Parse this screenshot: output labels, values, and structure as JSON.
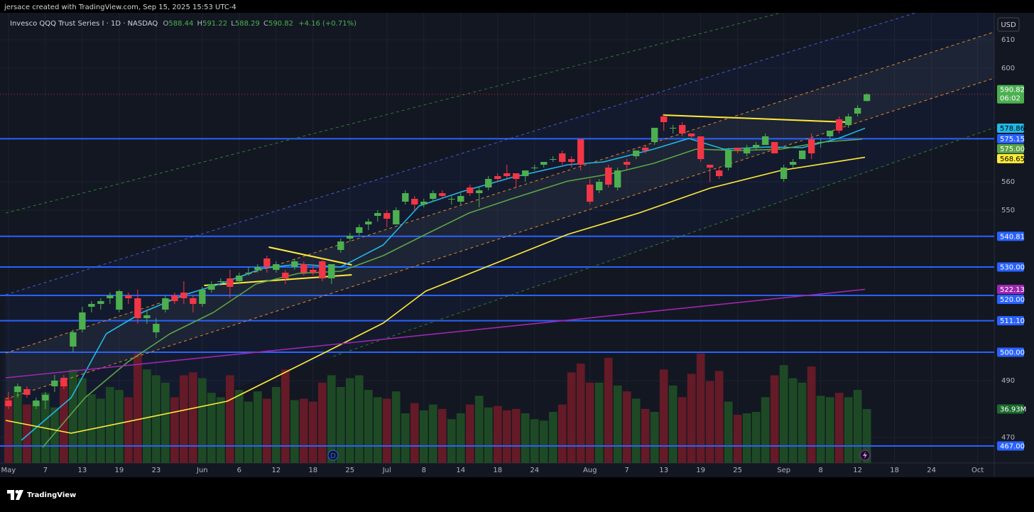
{
  "header": {
    "credit": "jersace created with TradingView.com, Sep 15, 2025 15:53 UTC-4"
  },
  "footer": {
    "brand": "TradingView"
  },
  "chart_data": {
    "type": "candlestick",
    "symbol": "Invesco QQQ Trust Series I · 1D · NASDAQ",
    "ohlc_labels": [
      "O",
      "H",
      "L",
      "C"
    ],
    "change": "+4.16 (+0.71%)",
    "currency": "USD",
    "countdown": "06:02",
    "dividend_marker": "D",
    "up_color": "#4caf50",
    "down_color": "#f23645",
    "volume_up_color": "#1d4a25",
    "volume_down_color": "#641b27",
    "candles": [
      [
        483,
        486,
        480,
        481
      ],
      [
        486,
        489,
        484,
        488
      ],
      [
        487,
        488,
        484,
        485
      ],
      [
        481,
        484,
        480,
        483
      ],
      [
        483,
        486,
        480,
        485
      ],
      [
        488,
        492,
        486,
        490
      ],
      [
        491,
        492,
        487,
        488
      ],
      [
        502,
        508,
        500,
        507
      ],
      [
        508,
        516,
        507,
        514
      ],
      [
        516,
        518,
        514,
        517
      ],
      [
        517,
        519,
        515,
        518
      ],
      [
        519,
        521,
        517,
        520
      ],
      [
        515,
        522,
        514,
        521.5
      ],
      [
        520,
        521,
        517,
        519
      ],
      [
        519,
        522,
        510,
        512
      ],
      [
        512,
        515,
        510,
        513
      ],
      [
        507,
        512,
        505,
        510
      ],
      [
        515,
        520,
        514,
        519
      ],
      [
        520,
        521,
        517,
        518
      ],
      [
        521,
        525,
        517,
        519
      ],
      [
        519,
        520,
        514,
        517
      ],
      [
        517,
        523,
        516,
        522
      ],
      [
        522,
        525,
        521,
        524
      ],
      [
        525,
        526,
        524,
        525
      ],
      [
        526,
        529,
        519,
        523
      ],
      [
        525,
        528,
        524,
        527
      ],
      [
        528,
        530,
        527,
        528
      ],
      [
        529,
        531,
        528,
        530
      ],
      [
        533,
        534,
        528,
        530
      ],
      [
        529,
        532,
        528,
        531
      ],
      [
        528,
        529,
        524,
        526
      ],
      [
        530,
        533,
        529,
        532
      ],
      [
        531,
        532,
        527,
        528
      ],
      [
        529,
        531,
        527,
        528
      ],
      [
        532,
        533,
        525,
        526
      ],
      [
        526,
        531,
        524,
        531
      ],
      [
        536,
        540,
        535,
        539
      ],
      [
        540,
        542,
        539,
        541
      ],
      [
        542,
        545,
        541,
        544
      ],
      [
        545,
        547,
        543,
        546
      ],
      [
        548,
        550,
        546,
        549
      ],
      [
        549,
        550,
        544,
        547
      ],
      [
        545,
        551,
        545,
        550
      ],
      [
        553,
        557,
        552,
        556
      ],
      [
        554,
        555,
        550,
        552
      ],
      [
        552,
        554,
        551,
        553
      ],
      [
        554,
        557,
        553,
        556
      ],
      [
        556,
        557,
        554,
        555
      ],
      [
        554,
        555,
        552,
        554
      ],
      [
        553,
        556,
        552,
        555
      ],
      [
        558,
        559,
        555,
        556
      ],
      [
        556,
        558,
        551,
        557
      ],
      [
        558,
        562,
        557,
        561
      ],
      [
        562,
        563,
        560,
        561
      ],
      [
        563,
        566,
        561,
        562
      ],
      [
        563,
        563,
        558,
        561
      ],
      [
        562,
        564,
        560,
        564
      ],
      [
        565,
        566,
        564,
        565
      ],
      [
        566,
        567,
        565,
        567
      ],
      [
        568,
        569,
        567,
        568
      ],
      [
        570,
        571,
        566,
        567
      ],
      [
        568,
        569,
        565,
        567
      ],
      [
        575,
        575,
        564,
        566
      ],
      [
        559,
        561,
        552,
        553
      ],
      [
        557,
        561,
        556,
        560
      ],
      [
        565,
        566,
        558,
        559
      ],
      [
        558,
        565,
        557,
        564
      ],
      [
        567,
        568,
        564,
        566
      ],
      [
        569,
        571,
        568,
        571
      ],
      [
        572,
        573,
        570,
        571
      ],
      [
        574,
        579,
        573,
        579
      ],
      [
        583,
        584,
        578,
        581
      ],
      [
        579,
        580,
        577,
        579
      ],
      [
        580,
        581,
        576,
        577
      ],
      [
        577,
        577,
        575,
        576
      ],
      [
        576,
        576,
        567,
        568
      ],
      [
        566,
        566,
        560,
        565
      ],
      [
        564,
        565,
        561,
        562
      ],
      [
        565,
        572,
        564,
        571
      ],
      [
        572,
        572,
        570,
        571
      ],
      [
        570,
        573,
        569,
        572
      ],
      [
        572,
        574,
        571,
        573
      ],
      [
        573,
        577,
        573,
        576
      ],
      [
        574,
        574,
        570,
        570
      ],
      [
        561,
        566,
        560,
        565
      ],
      [
        566,
        568,
        565,
        567
      ],
      [
        568,
        571,
        568,
        571
      ],
      [
        575,
        577,
        568,
        570
      ],
      [
        574,
        575,
        572,
        574
      ],
      [
        576,
        578,
        575,
        578
      ],
      [
        582,
        583,
        577,
        578
      ],
      [
        580,
        584,
        579,
        583
      ],
      [
        584,
        587,
        583,
        586
      ],
      [
        588.44,
        591.22,
        588.29,
        590.82
      ]
    ],
    "volumes": [
      45,
      52,
      40,
      42,
      48,
      38,
      55,
      64,
      58,
      47,
      44,
      52,
      50,
      45,
      76,
      64,
      60,
      55,
      45,
      60,
      62,
      58,
      48,
      45,
      60,
      50,
      42,
      49,
      44,
      52,
      64,
      43,
      44,
      42,
      55,
      60,
      52,
      58,
      60,
      50,
      45,
      44,
      49,
      34,
      41,
      36,
      40,
      37,
      30,
      34,
      40,
      46,
      38,
      39,
      36,
      37,
      34,
      30,
      29,
      35,
      40,
      62,
      68,
      55,
      55,
      72,
      53,
      49,
      44,
      37,
      35,
      64,
      53,
      45,
      61,
      75,
      56,
      63,
      42,
      33,
      34,
      35,
      45,
      60,
      67,
      58,
      55,
      66,
      46,
      45,
      48,
      45,
      50,
      36.93
    ],
    "xlim": [
      -0.3,
      106.8
    ],
    "xticks": [
      {
        "value": 0,
        "label": "May"
      },
      {
        "value": 4,
        "label": "7"
      },
      {
        "value": 8,
        "label": "13"
      },
      {
        "value": 12,
        "label": "19"
      },
      {
        "value": 16,
        "label": "23"
      },
      {
        "value": 21,
        "label": "Jun"
      },
      {
        "value": 25,
        "label": "6"
      },
      {
        "value": 29,
        "label": "12"
      },
      {
        "value": 33,
        "label": "18"
      },
      {
        "value": 37,
        "label": "25"
      },
      {
        "value": 41,
        "label": "Jul"
      },
      {
        "value": 45,
        "label": "8"
      },
      {
        "value": 49,
        "label": "14"
      },
      {
        "value": 53,
        "label": "18"
      },
      {
        "value": 57,
        "label": "24"
      },
      {
        "value": 63,
        "label": "Aug"
      },
      {
        "value": 67,
        "label": "7"
      },
      {
        "value": 71,
        "label": "13"
      },
      {
        "value": 75,
        "label": "19"
      },
      {
        "value": 79,
        "label": "25"
      },
      {
        "value": 84,
        "label": "Sep"
      },
      {
        "value": 88,
        "label": "8"
      },
      {
        "value": 92,
        "label": "12"
      },
      {
        "value": 96,
        "label": "18"
      },
      {
        "value": 100,
        "label": "24"
      },
      {
        "value": 105,
        "label": "Oct"
      }
    ],
    "ylim": [
      461,
      619.5
    ],
    "yticks": [
      610,
      600,
      560,
      550,
      490,
      470
    ],
    "grid": true,
    "volume_ylim": [
      0,
      308
    ],
    "volume_label": {
      "value": 36.93,
      "label": "36.93M",
      "color": "#1b6b2e",
      "text_color": "#ffffff"
    },
    "last_price": {
      "value": 590.82,
      "label": "590.82",
      "color": "#4caf50",
      "text_color": "#ffffff"
    },
    "levels_color": "#2962ff",
    "levels": [
      {
        "value": 575.15,
        "label": "575.15"
      },
      {
        "value": 540.81,
        "label": "540.81"
      },
      {
        "value": 530,
        "label": "530.00"
      },
      {
        "value": 520,
        "label": "520.00"
      },
      {
        "value": 511.1,
        "label": "511.10"
      },
      {
        "value": 500,
        "label": "500.00"
      },
      {
        "value": 467,
        "label": "467.00"
      }
    ],
    "moving_averages": [
      {
        "color": "#22b8e6",
        "text_color": "#000000",
        "x": [
          1.4,
          6.8,
          10.6,
          14.5,
          19.1,
          22.9,
          27.5,
          31.4,
          36,
          40.6,
          44.5,
          49.1,
          54.5,
          60.6,
          64.5,
          69.9,
          73.7,
          77.5,
          82.2,
          86,
          89.9,
          92.8
        ],
        "values": [
          469,
          484,
          506.5,
          514,
          520.25,
          524,
          529.5,
          531,
          530,
          537.75,
          551.5,
          556.5,
          561.5,
          566,
          567,
          571.5,
          575.25,
          571.5,
          572.25,
          572,
          575.25,
          578.86
        ],
        "label": {
          "value": 578.86,
          "label": "578.86"
        }
      },
      {
        "color": "#5ba548",
        "text_color": "#ffffff",
        "x": [
          3.7,
          8.3,
          12.9,
          17.5,
          22.2,
          26.8,
          31.4,
          36,
          40.6,
          45.2,
          49.9,
          54.5,
          60.6,
          65.2,
          69.9,
          74.5,
          79.1,
          83.7,
          88.3,
          92.5
        ],
        "values": [
          466.5,
          484,
          496.5,
          506.5,
          514,
          524,
          527.75,
          528.5,
          534,
          541.5,
          549,
          554,
          560.25,
          562.75,
          566.5,
          571.5,
          571,
          571.5,
          574,
          575
        ],
        "label": {
          "value": 575,
          "label": "575.00"
        }
      },
      {
        "color": "#ffeb3b",
        "text_color": "#000000",
        "x": [
          -0.3,
          6.8,
          23.7,
          34.5,
          40.6,
          45.2,
          52.9,
          60.6,
          68.3,
          76,
          83.7,
          92.8
        ],
        "values": [
          476,
          471.5,
          482.75,
          500.25,
          510.25,
          521.5,
          531.5,
          541.5,
          549,
          557.75,
          564,
          568.65
        ],
        "label": {
          "value": 568.65,
          "label": "568.65"
        }
      },
      {
        "color": "#9c27b0",
        "text_color": "#ffffff",
        "x": [
          -0.3,
          37.5,
          92.8
        ],
        "values": [
          491,
          503.5,
          522.13
        ],
        "label": {
          "value": 522.13,
          "label": "522.13"
        }
      }
    ],
    "trend_lines": [
      {
        "color": "#2e7d32",
        "dashed": true,
        "x": [
          -0.3,
          83.7
        ],
        "values": [
          549,
          619.5
        ]
      },
      {
        "color": "#3f5fd0",
        "dashed": true,
        "x": [
          -0.3,
          98.3
        ],
        "values": [
          520.25,
          619.5
        ]
      },
      {
        "color": "#e08a2a",
        "dashed": true,
        "x": [
          -0.3,
          106.8
        ],
        "values": [
          499.7,
          612.75
        ]
      },
      {
        "color": "#e08a2a",
        "dashed": true,
        "x": [
          -0.3,
          106.8
        ],
        "values": [
          483.5,
          596.5
        ]
      },
      {
        "color": "#2e7d32",
        "dashed": true,
        "x": [
          35.2,
          106.8
        ],
        "values": [
          498.5,
          579
        ]
      },
      {
        "color": "#ffeb3b",
        "dashed": false,
        "x": [
          28.2,
          37.2
        ],
        "values": [
          537,
          530.75
        ]
      },
      {
        "color": "#ffeb3b",
        "dashed": false,
        "x": [
          21.2,
          37.2
        ],
        "values": [
          523.5,
          527.25
        ]
      },
      {
        "color": "#ffeb3b",
        "dashed": false,
        "x": [
          70.9,
          90.9
        ],
        "values": [
          583.5,
          581
        ]
      }
    ]
  }
}
